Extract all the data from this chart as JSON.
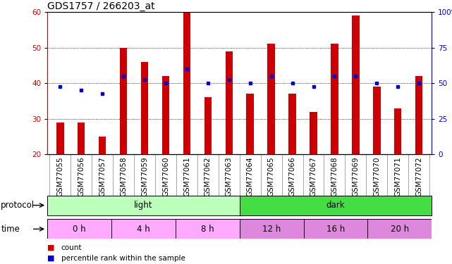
{
  "title": "GDS1757 / 266203_at",
  "samples": [
    "GSM77055",
    "GSM77056",
    "GSM77057",
    "GSM77058",
    "GSM77059",
    "GSM77060",
    "GSM77061",
    "GSM77062",
    "GSM77063",
    "GSM77064",
    "GSM77065",
    "GSM77066",
    "GSM77067",
    "GSM77068",
    "GSM77069",
    "GSM77070",
    "GSM77071",
    "GSM77072"
  ],
  "counts": [
    29,
    29,
    25,
    50,
    46,
    42,
    60,
    36,
    49,
    37,
    51,
    37,
    32,
    51,
    59,
    39,
    33,
    42
  ],
  "percentiles": [
    39,
    38,
    37,
    42,
    41,
    40,
    44,
    40,
    41,
    40,
    42,
    40,
    39,
    42,
    42,
    40,
    39,
    40
  ],
  "ylim_left": [
    20,
    60
  ],
  "ylim_right": [
    0,
    100
  ],
  "yticks_left": [
    20,
    30,
    40,
    50,
    60
  ],
  "yticks_right": [
    0,
    25,
    50,
    75,
    100
  ],
  "bar_color": "#cc0000",
  "dot_color": "#0000cc",
  "background_color": "#ffffff",
  "protocol_light_color": "#bbffbb",
  "protocol_dark_color": "#44dd44",
  "time_light_color": "#ffaaff",
  "time_dark_color": "#dd88dd",
  "protocol_light_label": "light",
  "protocol_dark_label": "dark",
  "time_labels": [
    "0 h",
    "4 h",
    "8 h",
    "12 h",
    "16 h",
    "20 h"
  ],
  "light_samples": 9,
  "dark_samples": 9,
  "legend_count": "count",
  "legend_percentile": "percentile rank within the sample",
  "title_fontsize": 10,
  "tick_fontsize": 7.5,
  "label_fontsize": 8.5,
  "row_fontsize": 8.5
}
